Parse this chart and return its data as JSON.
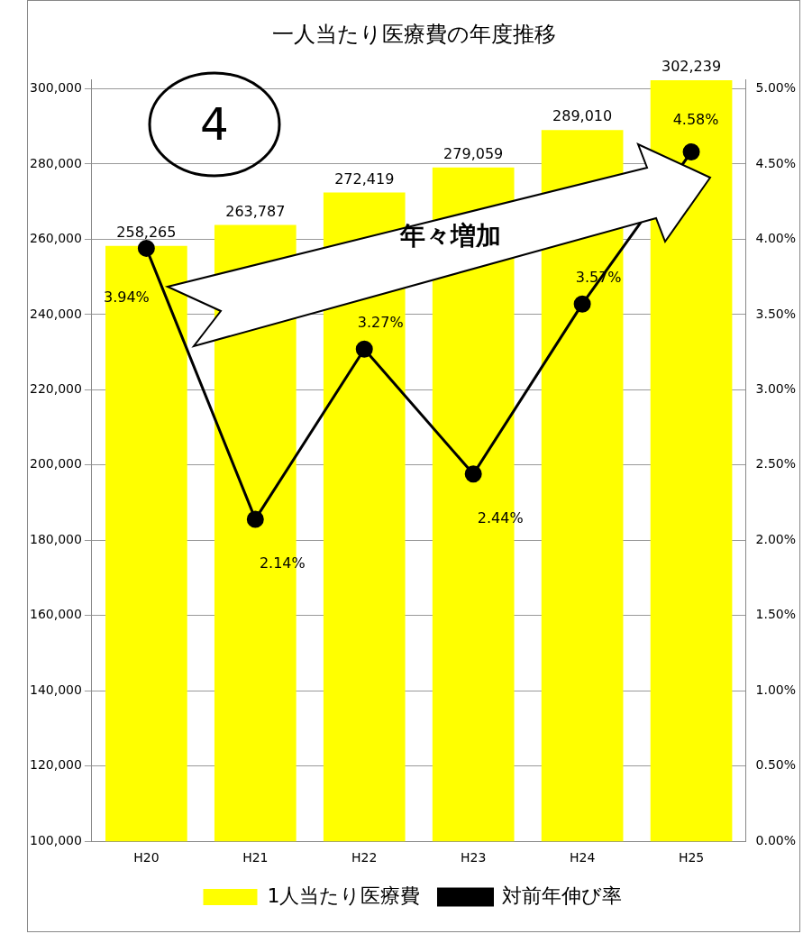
{
  "chart_data": {
    "type": "bar",
    "title": "一人当たり医療費の年度推移",
    "categories": [
      "H20",
      "H21",
      "H22",
      "H23",
      "H24",
      "H25"
    ],
    "series": [
      {
        "name": "1人当たり医療費",
        "color": "#ffff00",
        "values": [
          258265,
          263787,
          272419,
          279059,
          289010,
          302239
        ],
        "value_labels": [
          "258,265",
          "263,787",
          "272,419",
          "279,059",
          "289,010",
          "302,239"
        ]
      },
      {
        "name": "対前年伸び率",
        "type": "line",
        "axis": "y2",
        "color": "#000000",
        "values": [
          3.94,
          2.14,
          3.27,
          2.44,
          3.57,
          4.58
        ],
        "value_labels": [
          "3.94%",
          "2.14%",
          "3.27%",
          "2.44%",
          "3.57%",
          "4.58%"
        ]
      }
    ],
    "ylim": [
      100000,
      302500
    ],
    "yticks": [
      {
        "value": 100000,
        "label": "100,000"
      },
      {
        "value": 120000,
        "label": "120,000"
      },
      {
        "value": 140000,
        "label": "140,000"
      },
      {
        "value": 160000,
        "label": "160,000"
      },
      {
        "value": 180000,
        "label": "180,000"
      },
      {
        "value": 200000,
        "label": "200,000"
      },
      {
        "value": 220000,
        "label": "220,000"
      },
      {
        "value": 240000,
        "label": "240,000"
      },
      {
        "value": 260000,
        "label": "260,000"
      },
      {
        "value": 280000,
        "label": "280,000"
      },
      {
        "value": 300000,
        "label": "300,000"
      }
    ],
    "y2lim": [
      0,
      5.0625
    ],
    "y2ticks": [
      {
        "value": 0,
        "label": "0.00%"
      },
      {
        "value": 0.5,
        "label": "0.50%"
      },
      {
        "value": 1,
        "label": "1.00%"
      },
      {
        "value": 1.5,
        "label": "1.50%"
      },
      {
        "value": 2,
        "label": "2.00%"
      },
      {
        "value": 2.5,
        "label": "2.50%"
      },
      {
        "value": 3,
        "label": "3.00%"
      },
      {
        "value": 3.5,
        "label": "3.50%"
      },
      {
        "value": 4,
        "label": "4.00%"
      },
      {
        "value": 4.5,
        "label": "4.50%"
      },
      {
        "value": 5,
        "label": "5.00%"
      }
    ],
    "grid": "y",
    "legend": "bottom",
    "marker": "circle",
    "line_style": "solid",
    "annotations": [
      "4",
      "年々増加"
    ]
  }
}
